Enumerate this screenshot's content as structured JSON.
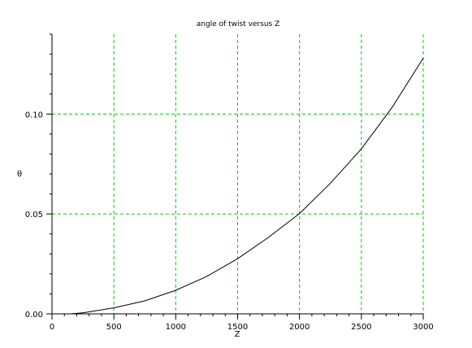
{
  "chart_data": {
    "type": "line",
    "title": "angle of twist versus Z",
    "xlabel": "Z",
    "ylabel": "θ",
    "xlim": [
      0,
      3000
    ],
    "ylim": [
      0,
      0.14
    ],
    "x_ticks": [
      0,
      500,
      1000,
      1500,
      2000,
      2500,
      3000
    ],
    "x_tick_labels": [
      "0",
      "500",
      "1000",
      "1500",
      "2000",
      "2500",
      "3000"
    ],
    "y_ticks": [
      0,
      0.05,
      0.1
    ],
    "y_tick_labels": [
      "0.00",
      "0.05",
      "0.10"
    ],
    "grid": true,
    "grid_color": "#00cc00",
    "line_color": "#000000",
    "series": [
      {
        "x": [
          150,
          250,
          500,
          750,
          1000,
          1250,
          1500,
          1750,
          2000,
          2250,
          2500,
          2750,
          3000
        ],
        "y": [
          0.0,
          0.0005,
          0.003,
          0.0065,
          0.0118,
          0.0187,
          0.0276,
          0.0383,
          0.0502,
          0.0654,
          0.0826,
          0.1035,
          0.128
        ]
      }
    ]
  }
}
